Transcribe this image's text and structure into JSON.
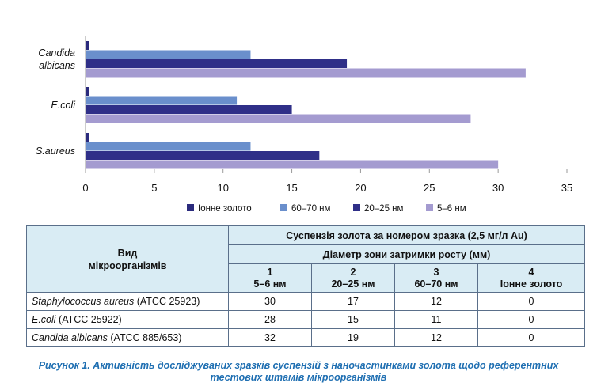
{
  "chart_data": {
    "type": "bar",
    "orientation": "horizontal",
    "categories": [
      "Candida albicans",
      "E.coli",
      "S.aureus"
    ],
    "category_lines": [
      [
        "Candida",
        "albicans"
      ],
      [
        "E.coli"
      ],
      [
        "S.aureus"
      ]
    ],
    "series": [
      {
        "name": "Іонне золото",
        "color": "#2b2b7d",
        "values": [
          0,
          0,
          0
        ]
      },
      {
        "name": "60–70 нм",
        "color": "#6a8fcc",
        "values": [
          12,
          11,
          12
        ]
      },
      {
        "name": "20–25 нм",
        "color": "#2f2f88",
        "values": [
          19,
          15,
          17
        ]
      },
      {
        "name": "5–6 нм",
        "color": "#a49bd0",
        "values": [
          32,
          28,
          30
        ]
      }
    ],
    "xlim": [
      0,
      35
    ],
    "xticks": [
      "0",
      "5",
      "10",
      "15",
      "20",
      "25",
      "30",
      "35"
    ],
    "grid": false,
    "legend_position": "bottom"
  },
  "table": {
    "col_header_species": "Вид мікроорганізмів",
    "group_header": "Суспензія золота за номером зразка (2,5 мг/л Au)",
    "subgroup_header": "Діаметр зони затримки росту (мм)",
    "columns": [
      {
        "num": "1",
        "label": "5–6 нм"
      },
      {
        "num": "2",
        "label": "20–25 нм"
      },
      {
        "num": "3",
        "label": "60–70 нм"
      },
      {
        "num": "4",
        "label": "Іонне золото"
      }
    ],
    "rows": [
      {
        "species": "Staphylococcus aureus",
        "strain": " (ATCC 25923)",
        "values": [
          "30",
          "17",
          "12",
          "0"
        ]
      },
      {
        "species": "E.coli",
        "strain": " (ATCC 25922)",
        "values": [
          "28",
          "15",
          "11",
          "0"
        ]
      },
      {
        "species": "Candida albicans",
        "strain": " (ATCC 885/653)",
        "values": [
          "32",
          "19",
          "12",
          "0"
        ]
      }
    ]
  },
  "caption": {
    "line1": "Рисунок 1. Активність досліджуваних зразків суспензій з наночастинками золота щодо референтних",
    "line2": "тестових штамів мікроорганізмів"
  }
}
